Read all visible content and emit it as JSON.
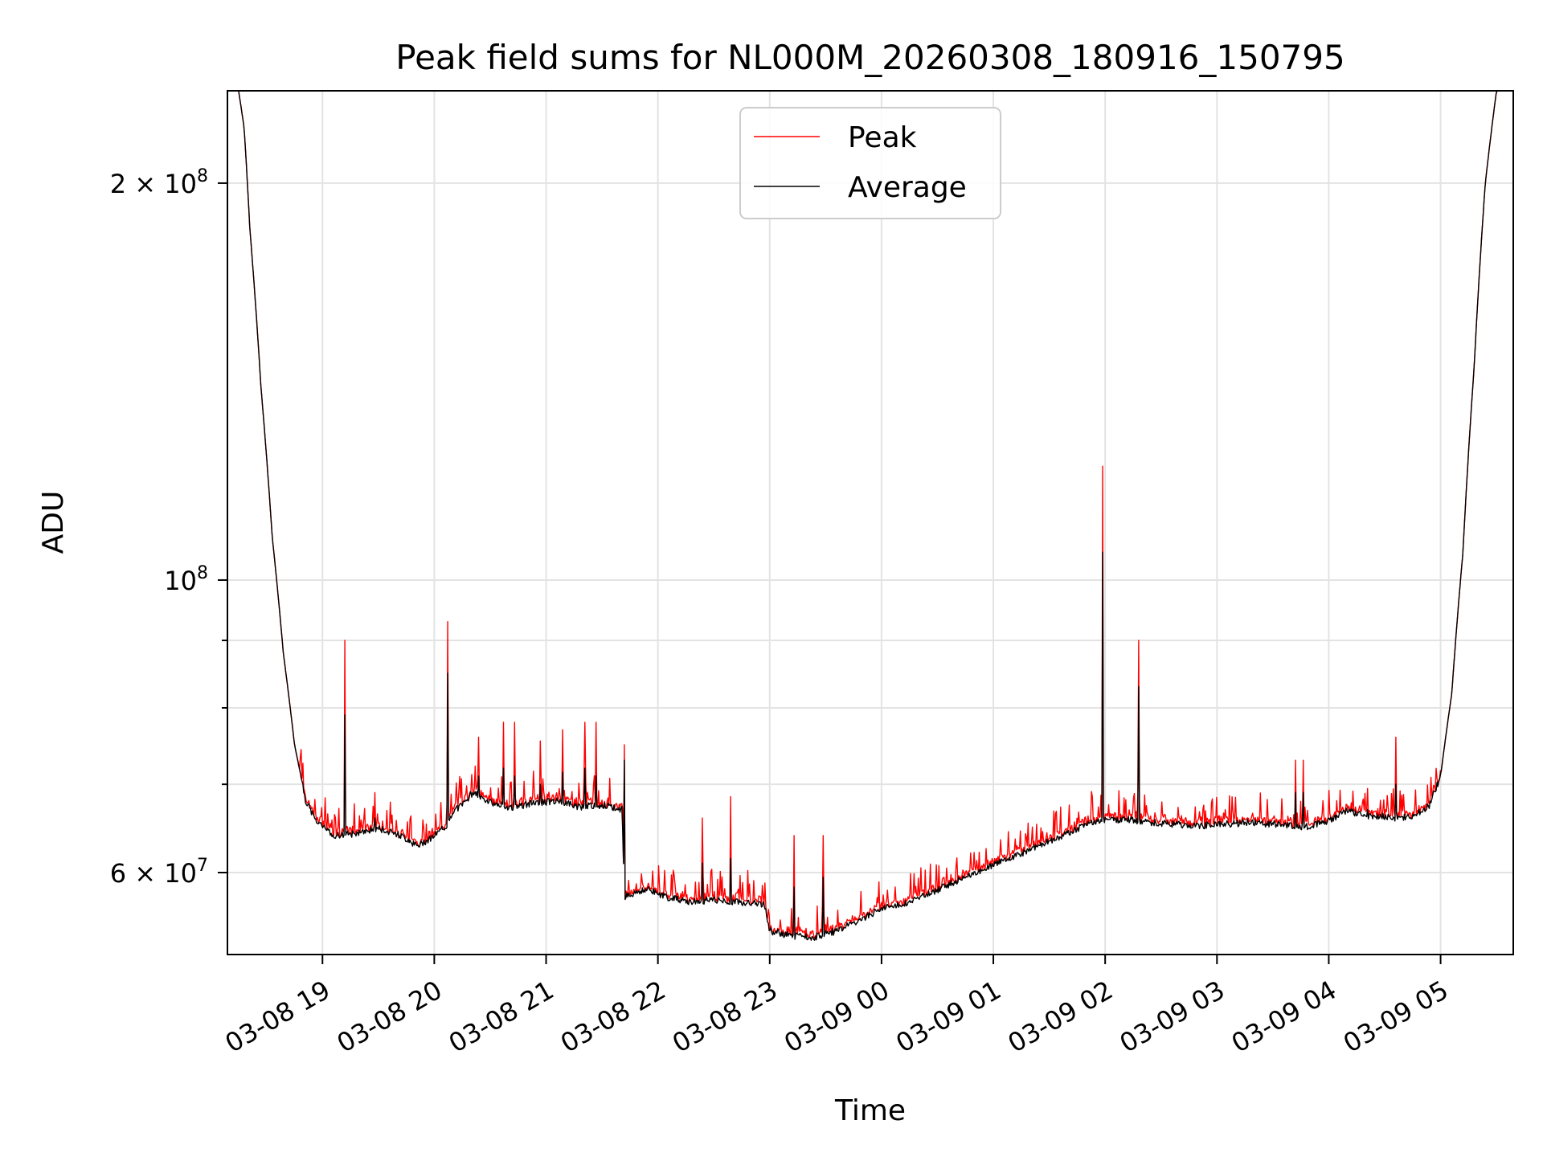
{
  "chart_data": {
    "type": "line",
    "title": "Peak field sums for NL000M_20260308_180916_150795",
    "xlabel": "Time",
    "ylabel": "ADU",
    "yscale": "log",
    "ylim": [
      52000000,
      235000000
    ],
    "xlim_hours": [
      18.15,
      29.65
    ],
    "grid": true,
    "legend_position": "upper center",
    "x_ticks": [
      {
        "label": "03-08 19",
        "hour": 19
      },
      {
        "label": "03-08 20",
        "hour": 20
      },
      {
        "label": "03-08 21",
        "hour": 21
      },
      {
        "label": "03-08 22",
        "hour": 22
      },
      {
        "label": "03-08 23",
        "hour": 23
      },
      {
        "label": "03-09 00",
        "hour": 24
      },
      {
        "label": "03-09 01",
        "hour": 25
      },
      {
        "label": "03-09 02",
        "hour": 26
      },
      {
        "label": "03-09 03",
        "hour": 27
      },
      {
        "label": "03-09 04",
        "hour": 28
      },
      {
        "label": "03-09 05",
        "hour": 29
      }
    ],
    "y_major_ticks": [
      {
        "value": 200000000,
        "label_base": "2 × 10",
        "label_exp": "8"
      },
      {
        "value": 100000000,
        "label_base": "10",
        "label_exp": "8"
      },
      {
        "value": 60000000,
        "label_base": "6 × 10",
        "label_exp": "7"
      }
    ],
    "y_minor_ticks": [
      70000000,
      80000000,
      90000000
    ],
    "legend": [
      "Peak",
      "Average"
    ],
    "series": [
      {
        "name": "Average",
        "color": "#000000",
        "points": [
          [
            18.15,
            235000000
          ],
          [
            18.25,
            235000000
          ],
          [
            18.3,
            220000000
          ],
          [
            18.35,
            185000000
          ],
          [
            18.45,
            140000000
          ],
          [
            18.55,
            108000000
          ],
          [
            18.65,
            88000000
          ],
          [
            18.75,
            75000000
          ],
          [
            18.85,
            68000000
          ],
          [
            18.95,
            65500000
          ],
          [
            19.1,
            64000000
          ],
          [
            19.3,
            64200000
          ],
          [
            19.5,
            64800000
          ],
          [
            19.7,
            64000000
          ],
          [
            19.85,
            62800000
          ],
          [
            20.0,
            64000000
          ],
          [
            20.1,
            65000000
          ],
          [
            20.2,
            67000000
          ],
          [
            20.35,
            69000000
          ],
          [
            20.5,
            67800000
          ],
          [
            20.7,
            67200000
          ],
          [
            20.9,
            67800000
          ],
          [
            21.1,
            68000000
          ],
          [
            21.3,
            67300000
          ],
          [
            21.5,
            67500000
          ],
          [
            21.68,
            67000000
          ],
          [
            21.7,
            57500000
          ],
          [
            21.9,
            58300000
          ],
          [
            22.1,
            57400000
          ],
          [
            22.3,
            57000000
          ],
          [
            22.5,
            57200000
          ],
          [
            22.7,
            57000000
          ],
          [
            22.95,
            56800000
          ],
          [
            23.0,
            54200000
          ],
          [
            23.2,
            53700000
          ],
          [
            23.4,
            53600000
          ],
          [
            23.6,
            54200000
          ],
          [
            23.8,
            55200000
          ],
          [
            24.0,
            56300000
          ],
          [
            24.2,
            56800000
          ],
          [
            24.5,
            58200000
          ],
          [
            24.8,
            59800000
          ],
          [
            25.1,
            61300000
          ],
          [
            25.4,
            62800000
          ],
          [
            25.7,
            64500000
          ],
          [
            25.95,
            65800000
          ],
          [
            26.2,
            65800000
          ],
          [
            26.5,
            65400000
          ],
          [
            26.8,
            65100000
          ],
          [
            27.1,
            65300000
          ],
          [
            27.3,
            65500000
          ],
          [
            27.6,
            65200000
          ],
          [
            27.8,
            65000000
          ],
          [
            28.0,
            65700000
          ],
          [
            28.15,
            66800000
          ],
          [
            28.35,
            66300000
          ],
          [
            28.6,
            66000000
          ],
          [
            28.75,
            66200000
          ],
          [
            28.9,
            67500000
          ],
          [
            29.0,
            71000000
          ],
          [
            29.1,
            82000000
          ],
          [
            29.2,
            105000000
          ],
          [
            29.3,
            145000000
          ],
          [
            29.4,
            200000000
          ],
          [
            29.5,
            235000000
          ],
          [
            29.65,
            235000000
          ]
        ],
        "spikes": [
          [
            19.2,
            79000000
          ],
          [
            19.47,
            66000000
          ],
          [
            20.12,
            85000000
          ],
          [
            20.4,
            71000000
          ],
          [
            20.62,
            72000000
          ],
          [
            20.72,
            71000000
          ],
          [
            20.95,
            70000000
          ],
          [
            21.15,
            71500000
          ],
          [
            21.35,
            72000000
          ],
          [
            21.45,
            71000000
          ],
          [
            21.7,
            73000000
          ],
          [
            22.4,
            61000000
          ],
          [
            22.65,
            61500000
          ],
          [
            23.22,
            58500000
          ],
          [
            23.48,
            59500000
          ],
          [
            25.98,
            105000000
          ],
          [
            26.3,
            83000000
          ],
          [
            27.7,
            69000000
          ],
          [
            27.77,
            69000000
          ],
          [
            28.35,
            67000000
          ],
          [
            28.6,
            70000000
          ]
        ]
      },
      {
        "name": "Peak",
        "color": "#ff0000",
        "spikes": [
          [
            19.2,
            90000000
          ],
          [
            19.47,
            69000000
          ],
          [
            20.12,
            93000000
          ],
          [
            20.4,
            76000000
          ],
          [
            20.62,
            78000000
          ],
          [
            20.72,
            78000000
          ],
          [
            20.95,
            75500000
          ],
          [
            21.15,
            77000000
          ],
          [
            21.35,
            78000000
          ],
          [
            21.45,
            78000000
          ],
          [
            21.7,
            75000000
          ],
          [
            22.4,
            66000000
          ],
          [
            22.65,
            68500000
          ],
          [
            23.22,
            64000000
          ],
          [
            23.48,
            64000000
          ],
          [
            25.98,
            122000000
          ],
          [
            26.3,
            90000000
          ],
          [
            27.7,
            73000000
          ],
          [
            27.77,
            73000000
          ],
          [
            28.35,
            69500000
          ],
          [
            28.6,
            76000000
          ]
        ]
      }
    ]
  }
}
